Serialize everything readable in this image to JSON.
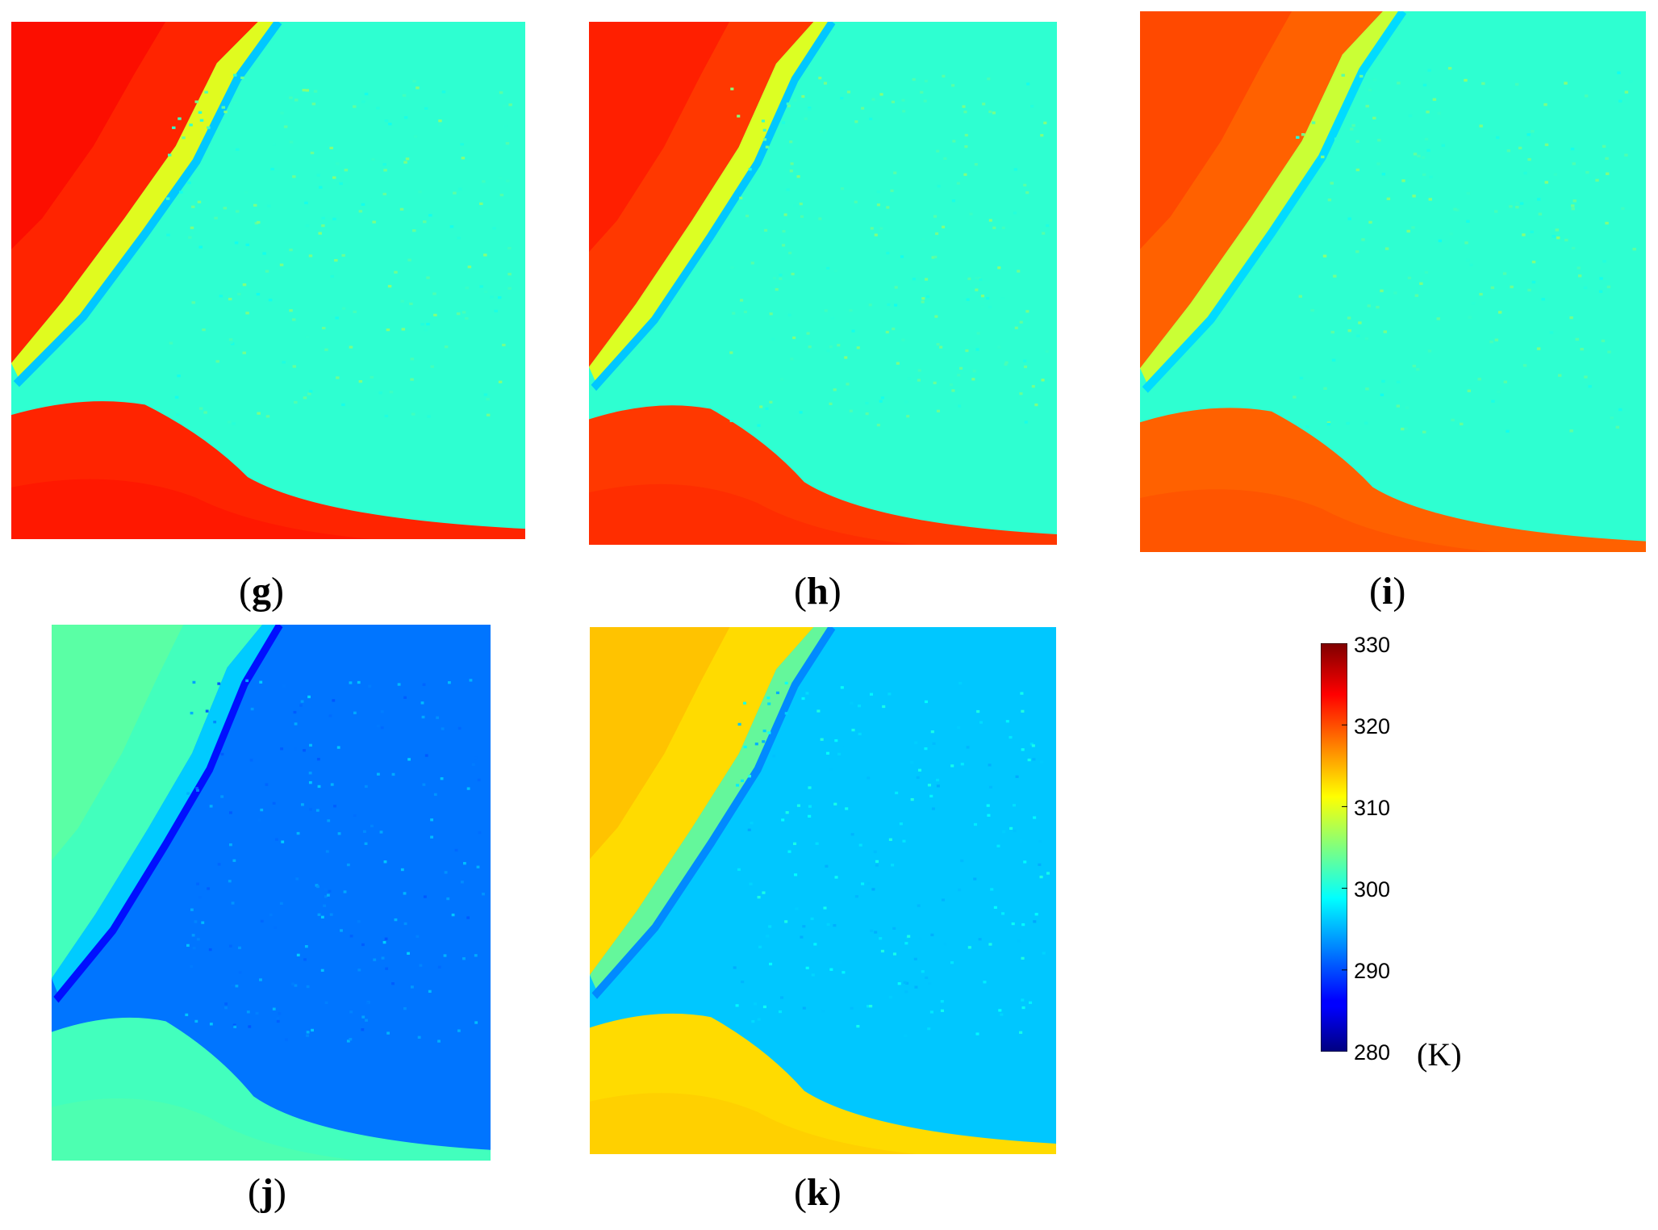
{
  "chart_data": {
    "type": "heatmap",
    "unit": "(K)",
    "colorbar": {
      "min": 280,
      "max": 330,
      "ticks": [
        330,
        320,
        310,
        300,
        290,
        280
      ],
      "colormap": "jet"
    },
    "panels": [
      {
        "label": "g",
        "desert_temp": 322,
        "field_temp": 301,
        "river_temp": 296
      },
      {
        "label": "h",
        "desert_temp": 321,
        "field_temp": 301,
        "river_temp": 296
      },
      {
        "label": "i",
        "desert_temp": 319,
        "field_temp": 301,
        "river_temp": 297
      },
      {
        "label": "j",
        "desert_temp": 302,
        "field_temp": 292,
        "river_temp": 287
      },
      {
        "label": "k",
        "desert_temp": 313,
        "field_temp": 296,
        "river_temp": 293
      }
    ]
  }
}
